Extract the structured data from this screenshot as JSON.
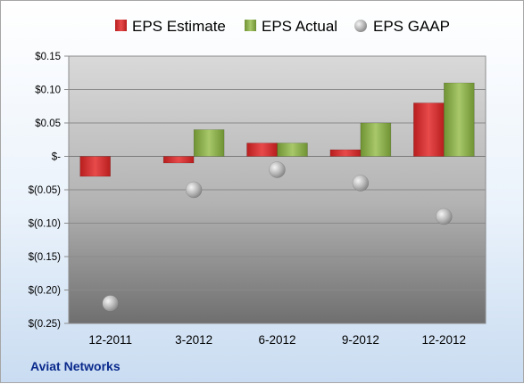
{
  "company": "Aviat Networks",
  "colors": {
    "estimate": "#d52a2a",
    "actual": "#8eb04a",
    "gaap": "#b9b9b9"
  },
  "chart_data": {
    "type": "bar",
    "categories": [
      "12-2011",
      "3-2012",
      "6-2012",
      "9-2012",
      "12-2012"
    ],
    "series": [
      {
        "name": "EPS Estimate",
        "type": "bar",
        "values": [
          -0.03,
          -0.01,
          0.02,
          0.01,
          0.08
        ]
      },
      {
        "name": "EPS Actual",
        "type": "bar",
        "values": [
          null,
          0.04,
          0.02,
          0.05,
          0.11
        ]
      },
      {
        "name": "EPS GAAP",
        "type": "scatter",
        "values": [
          -0.22,
          -0.05,
          -0.02,
          -0.04,
          -0.09
        ]
      }
    ],
    "ylim": [
      -0.25,
      0.15
    ],
    "yticks": [
      0.15,
      0.1,
      0.05,
      0,
      -0.05,
      -0.1,
      -0.15,
      -0.2,
      -0.25
    ],
    "ytick_labels": [
      "$0.15",
      "$0.10",
      "$0.05",
      "$-",
      "$(0.05)",
      "$(0.10)",
      "$(0.15)",
      "$(0.20)",
      "$(0.25)"
    ],
    "legend_position": "top",
    "grid": true
  }
}
